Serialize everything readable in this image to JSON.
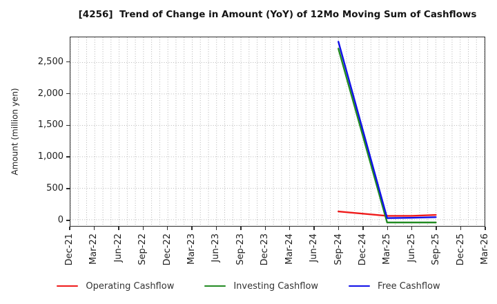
{
  "chart_data": {
    "type": "line",
    "title": "[4256]  Trend of Change in Amount (YoY) of 12Mo Moving Sum of Cashflows",
    "ylabel": "Amount (million yen)",
    "xlabel": "",
    "categories": [
      "Dec-21",
      "Mar-22",
      "Jun-22",
      "Sep-22",
      "Dec-22",
      "Mar-23",
      "Jun-23",
      "Sep-23",
      "Dec-23",
      "Mar-24",
      "Jun-24",
      "Sep-24",
      "Dec-24",
      "Mar-25",
      "Jun-25",
      "Sep-25",
      "Dec-25",
      "Mar-26"
    ],
    "yticks": [
      0,
      500,
      1000,
      1500,
      2000,
      2500
    ],
    "ytick_labels": [
      "0",
      "500",
      "1,000",
      "1,500",
      "2,000",
      "2,500"
    ],
    "ylim": [
      -100,
      2900
    ],
    "grid": true,
    "grid_style": "dotted",
    "minor_vertical_grid_per_interval": 3,
    "legend_position": "bottom",
    "frame_color": "#2b2b2b",
    "grid_color": "#ababab",
    "series": [
      {
        "name": "Operating Cashflow",
        "color": "#ef1a1a",
        "points": [
          {
            "month": "Sep-24",
            "value": 130
          },
          {
            "month": "Mar-25",
            "value": 60
          },
          {
            "month": "Jun-25",
            "value": 60
          },
          {
            "month": "Sep-25",
            "value": 75
          }
        ]
      },
      {
        "name": "Investing Cashflow",
        "color": "#228b22",
        "points": [
          {
            "month": "Sep-24",
            "value": 2720
          },
          {
            "month": "Mar-25",
            "value": -45
          },
          {
            "month": "Jun-25",
            "value": -45
          },
          {
            "month": "Sep-25",
            "value": -45
          }
        ]
      },
      {
        "name": "Free Cashflow",
        "color": "#0f0fe8",
        "points": [
          {
            "month": "Sep-24",
            "value": 2830
          },
          {
            "month": "Mar-25",
            "value": 25
          },
          {
            "month": "Jun-25",
            "value": 30
          },
          {
            "month": "Sep-25",
            "value": 40
          }
        ]
      }
    ]
  }
}
